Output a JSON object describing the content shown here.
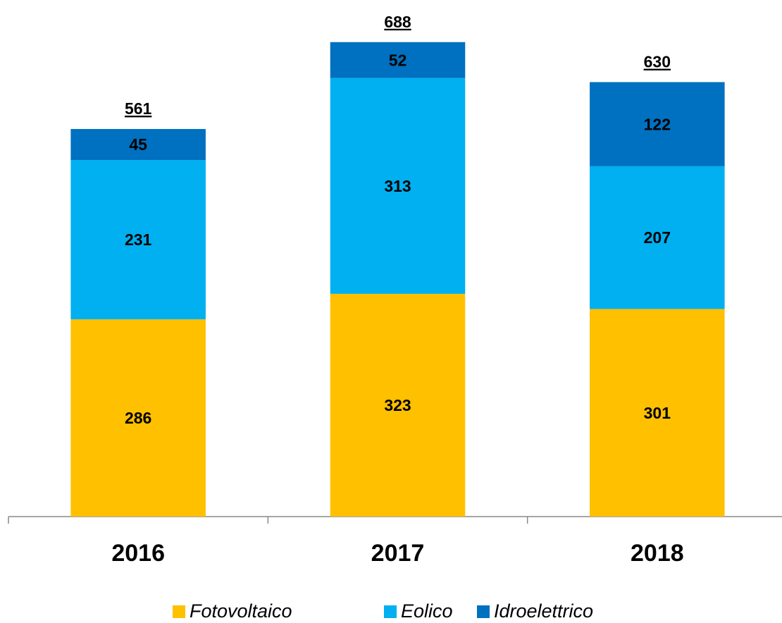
{
  "chart_data": {
    "type": "stacked_bar",
    "categories": [
      "2016",
      "2017",
      "2018"
    ],
    "series": [
      {
        "name": "Fotovoltaico",
        "color": "#FFC000",
        "values": [
          286,
          323,
          301
        ]
      },
      {
        "name": "Eolico",
        "color": "#00B0F0",
        "values": [
          231,
          313,
          207
        ]
      },
      {
        "name": "Idroelettrico",
        "color": "#0070C0",
        "values": [
          45,
          52,
          122
        ]
      }
    ],
    "totals": [
      561,
      688,
      630
    ],
    "ylim": [
      0,
      700
    ],
    "legend": "bottom"
  }
}
